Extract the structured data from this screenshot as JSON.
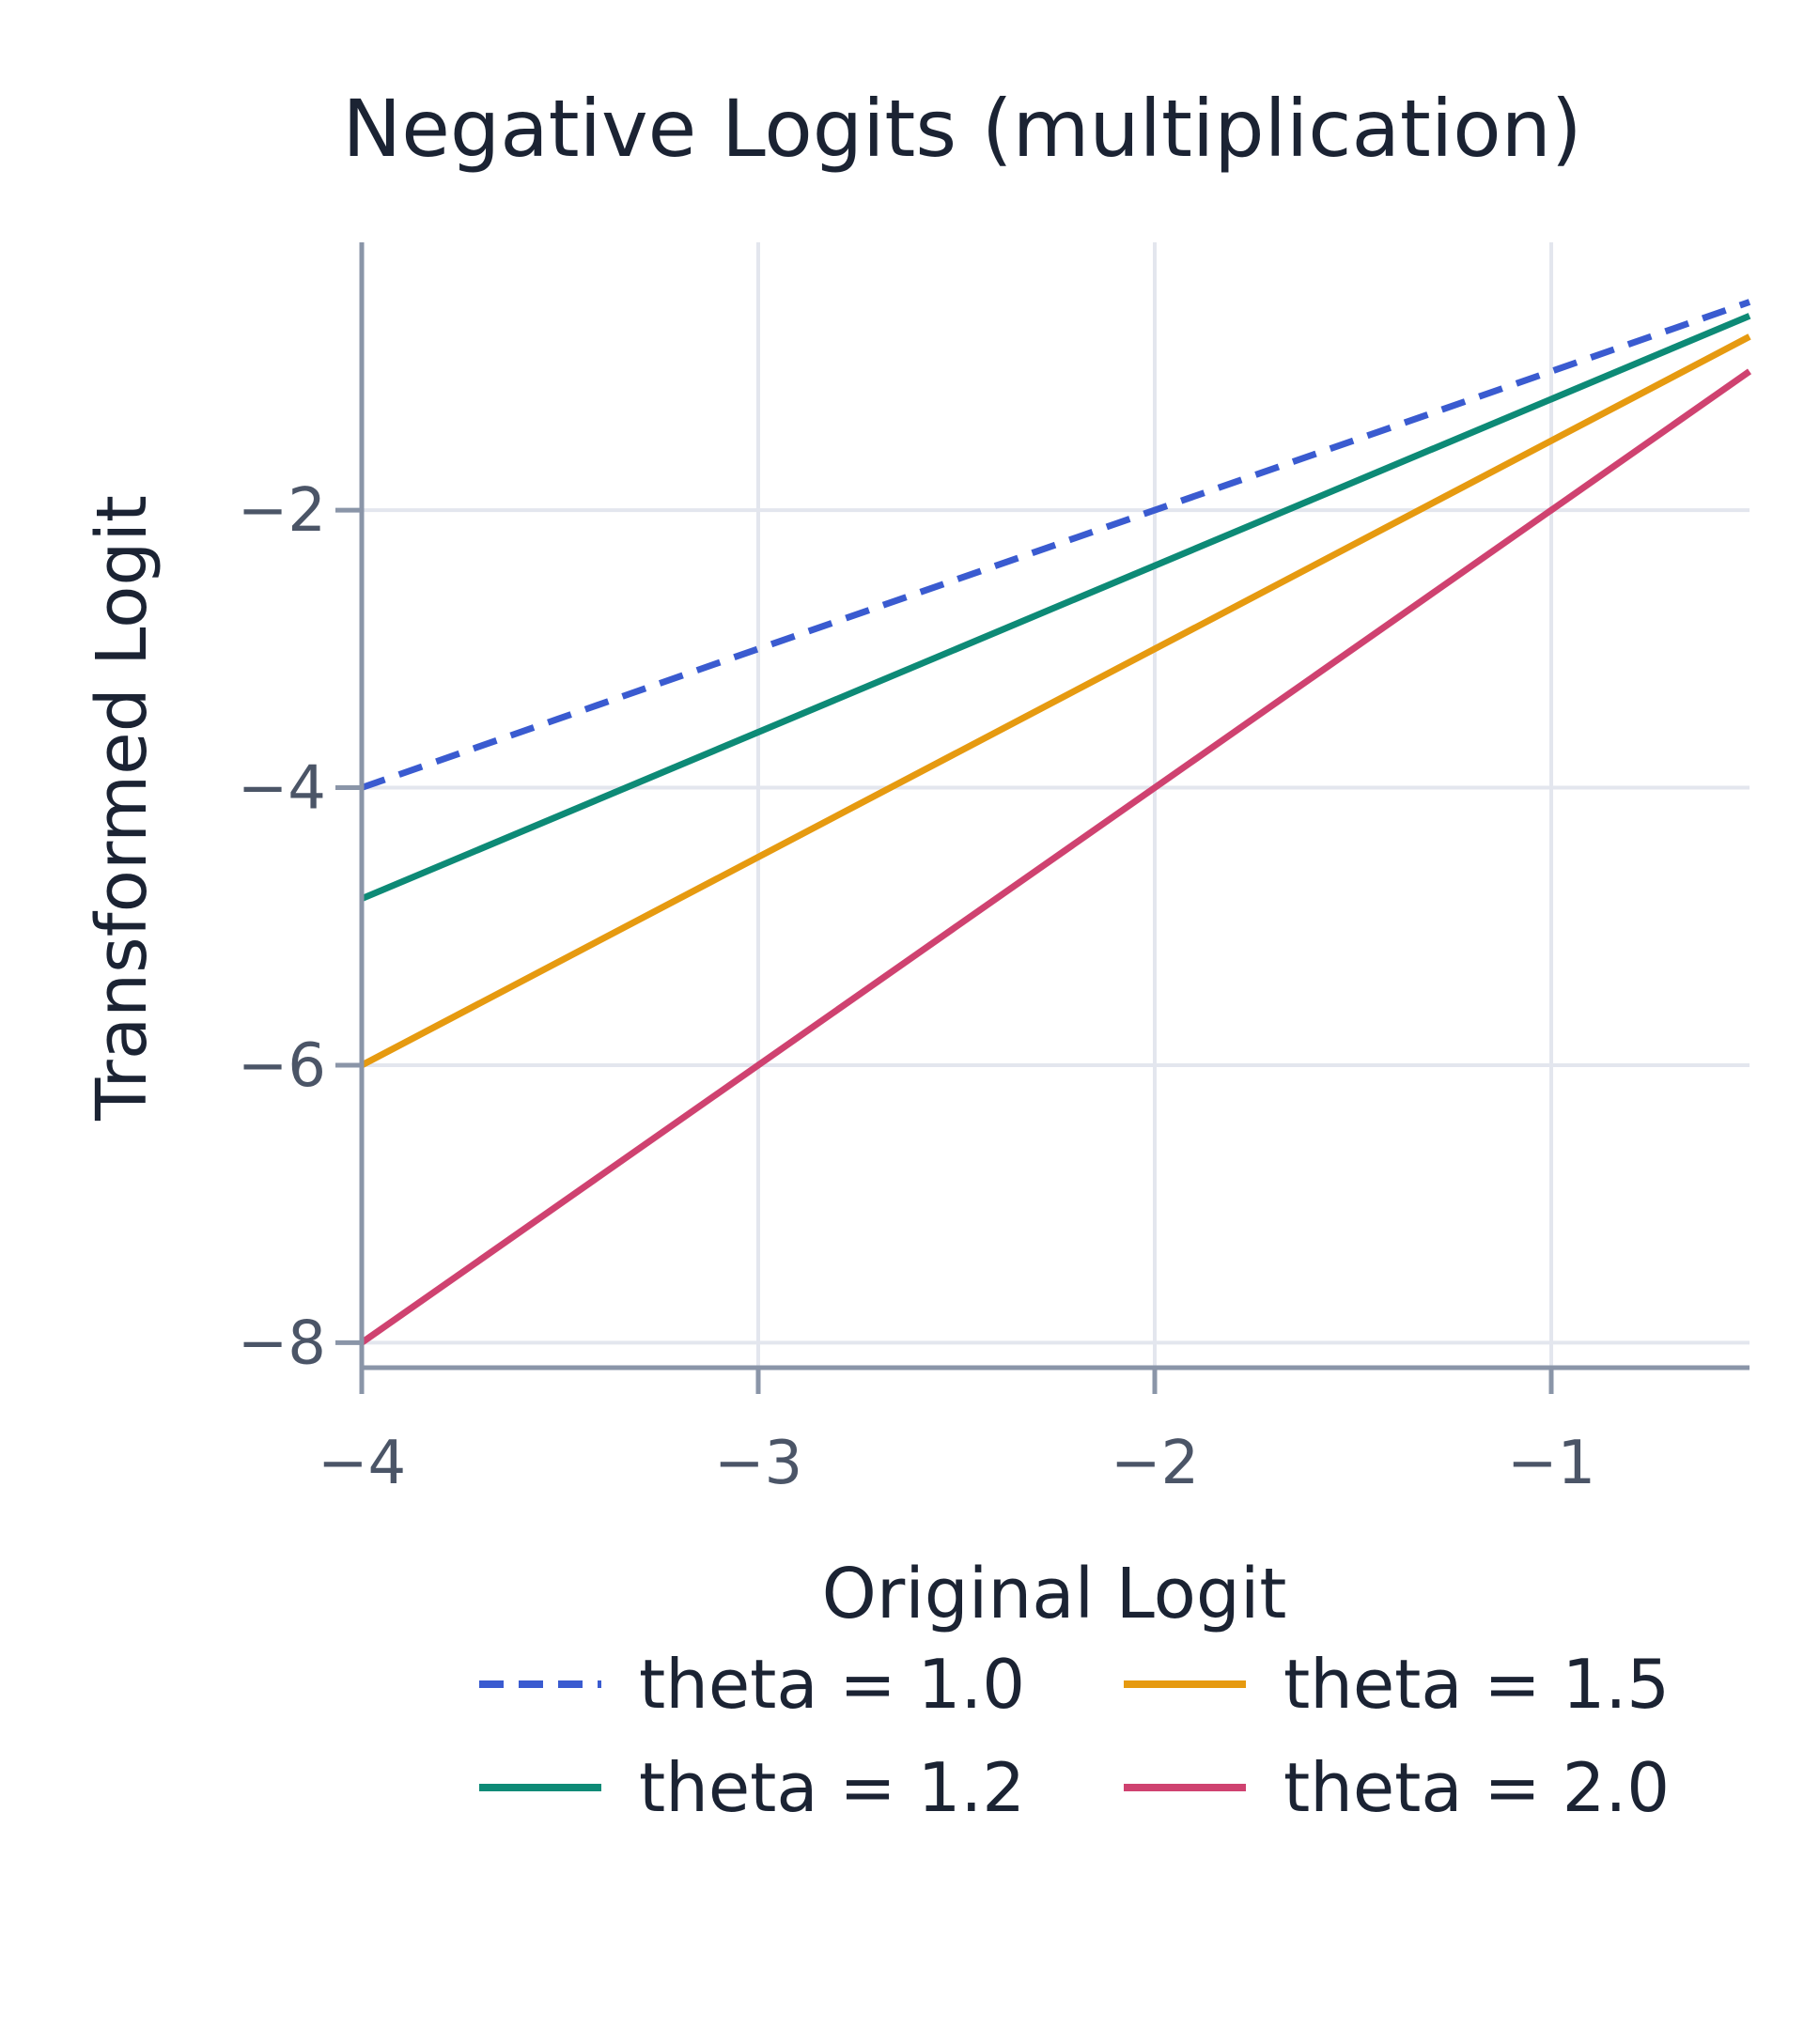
{
  "chart_data": {
    "type": "line",
    "title": "Negative Logits (multiplication)",
    "xlabel": "Original Logit",
    "ylabel": "Transformed Logit",
    "xlim": [
      -4,
      -0.5
    ],
    "ylim": [
      -8.18,
      -0.07
    ],
    "x_ticks": [
      -4,
      -3,
      -2,
      -1
    ],
    "x_tick_labels": [
      "−4",
      "−3",
      "−2",
      "−1"
    ],
    "y_ticks": [
      -8,
      -6,
      -4,
      -2
    ],
    "y_tick_labels": [
      "−8",
      "−6",
      "−4",
      "−2"
    ],
    "grid": true,
    "legend_position": "bottom",
    "series": [
      {
        "name": "theta = 1.0",
        "theta": 1.0,
        "color": "#3a5bd0",
        "dash": "dashed",
        "x": [
          -4,
          -0.5
        ],
        "y": [
          -4.0,
          -0.5
        ]
      },
      {
        "name": "theta = 1.2",
        "theta": 1.2,
        "color": "#0d8a76",
        "dash": "solid",
        "x": [
          -4,
          -0.5
        ],
        "y": [
          -4.8,
          -0.6
        ]
      },
      {
        "name": "theta = 1.5",
        "theta": 1.5,
        "color": "#e69a10",
        "dash": "solid",
        "x": [
          -4,
          -0.5
        ],
        "y": [
          -6.0,
          -0.75
        ]
      },
      {
        "name": "theta = 2.0",
        "theta": 2.0,
        "color": "#cf4270",
        "dash": "solid",
        "x": [
          -4,
          -0.5
        ],
        "y": [
          -8.0,
          -1.0
        ]
      }
    ]
  }
}
